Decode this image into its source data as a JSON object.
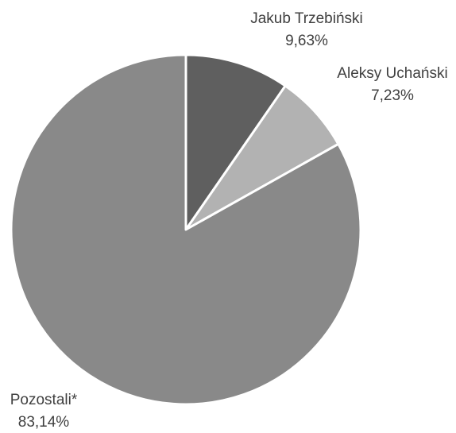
{
  "chart_data": {
    "type": "pie",
    "title": "",
    "start": "top",
    "direction": "clockwise",
    "slices": [
      {
        "label": "Jakub Trzebiński",
        "value": 9.63,
        "value_label": "9,63%",
        "color": "#5f5f5f"
      },
      {
        "label": "Aleksy Uchański",
        "value": 7.23,
        "value_label": "7,23%",
        "color": "#b2b2b2"
      },
      {
        "label": "Pozostali*",
        "value": 83.14,
        "value_label": "83,14%",
        "color": "#898989"
      }
    ],
    "slice_border_color": "#ffffff",
    "text_color": "#404040"
  }
}
